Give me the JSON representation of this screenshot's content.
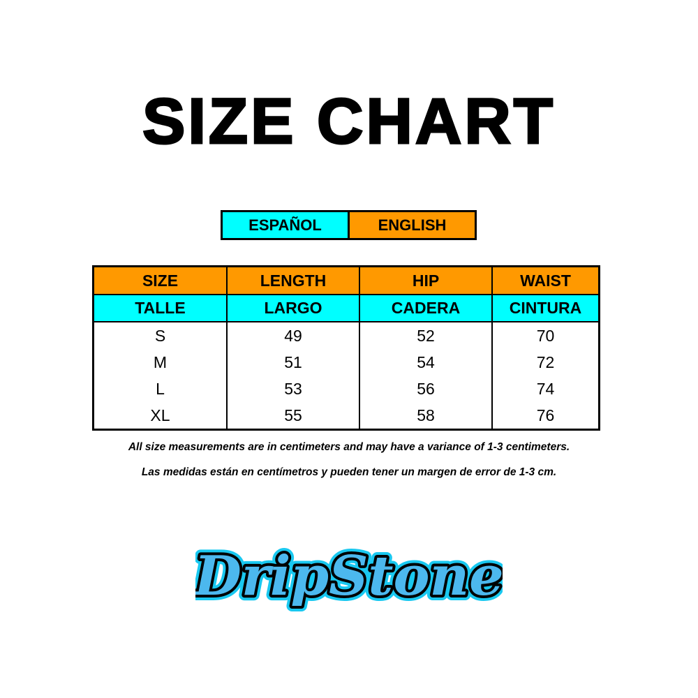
{
  "title": "SIZE CHART",
  "language_legend": {
    "spanish": "ESPAÑOL",
    "english": "ENGLISH",
    "spanish_color": "#00ffff",
    "english_color": "#ff9900"
  },
  "table": {
    "headers_en": [
      "SIZE",
      "LENGTH",
      "HIP",
      "WAIST"
    ],
    "headers_es": [
      "TALLE",
      "LARGO",
      "CADERA",
      "CINTURA"
    ],
    "rows": [
      [
        "S",
        "49",
        "52",
        "70"
      ],
      [
        "M",
        "51",
        "54",
        "72"
      ],
      [
        "L",
        "53",
        "56",
        "74"
      ],
      [
        "XL",
        "55",
        "58",
        "76"
      ]
    ]
  },
  "notes": {
    "english": "All size measurements are in centimeters and may have a variance of 1-3 centimeters.",
    "spanish": "Las medidas están en centímetros y pueden tener un margen de error de 1-3 cm."
  },
  "logo": {
    "text": "DripStone"
  }
}
